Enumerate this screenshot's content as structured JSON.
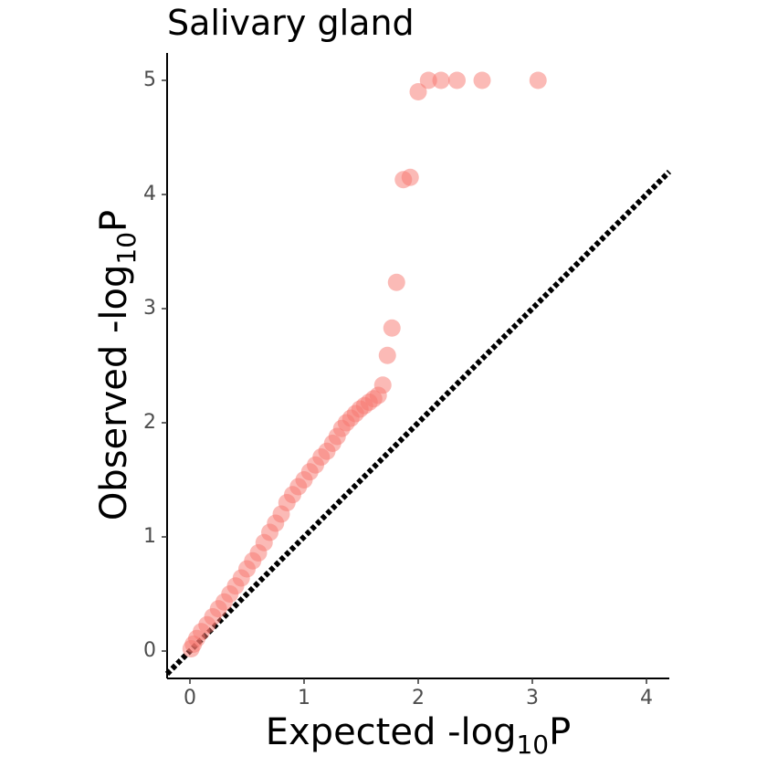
{
  "chart_data": {
    "type": "scatter",
    "title": "Salivary gland",
    "x_label": [
      "Expected -log",
      "10",
      "P"
    ],
    "y_label": [
      "Observed -log",
      "10",
      "P"
    ],
    "x": [
      3.05,
      2.56,
      2.34,
      2.2,
      2.09,
      2.0,
      1.93,
      1.87,
      1.81,
      1.77,
      1.73,
      1.69,
      1.65,
      1.61,
      1.57,
      1.53,
      1.49,
      1.45,
      1.41,
      1.37,
      1.33,
      1.29,
      1.25,
      1.2,
      1.15,
      1.1,
      1.05,
      1.0,
      0.95,
      0.9,
      0.85,
      0.8,
      0.75,
      0.7,
      0.65,
      0.6,
      0.55,
      0.5,
      0.45,
      0.4,
      0.35,
      0.3,
      0.25,
      0.2,
      0.15,
      0.1,
      0.06,
      0.03,
      0.01
    ],
    "values": [
      5.0,
      5.0,
      5.0,
      5.0,
      5.0,
      4.9,
      4.15,
      4.13,
      3.23,
      2.83,
      2.59,
      2.33,
      2.24,
      2.21,
      2.18,
      2.15,
      2.12,
      2.08,
      2.04,
      2.0,
      1.95,
      1.88,
      1.82,
      1.75,
      1.7,
      1.63,
      1.57,
      1.5,
      1.44,
      1.37,
      1.3,
      1.2,
      1.12,
      1.04,
      0.95,
      0.86,
      0.79,
      0.72,
      0.64,
      0.57,
      0.5,
      0.43,
      0.37,
      0.3,
      0.23,
      0.17,
      0.11,
      0.06,
      0.02
    ],
    "color": "#F8766D",
    "xlim": [
      -0.2,
      4.2
    ],
    "ylim": [
      -0.24,
      5.24
    ],
    "xticks": [
      0,
      1,
      2,
      3,
      4
    ],
    "yticks": [
      0,
      1,
      2,
      3,
      4,
      5
    ],
    "grid": false,
    "diagonal": true
  }
}
